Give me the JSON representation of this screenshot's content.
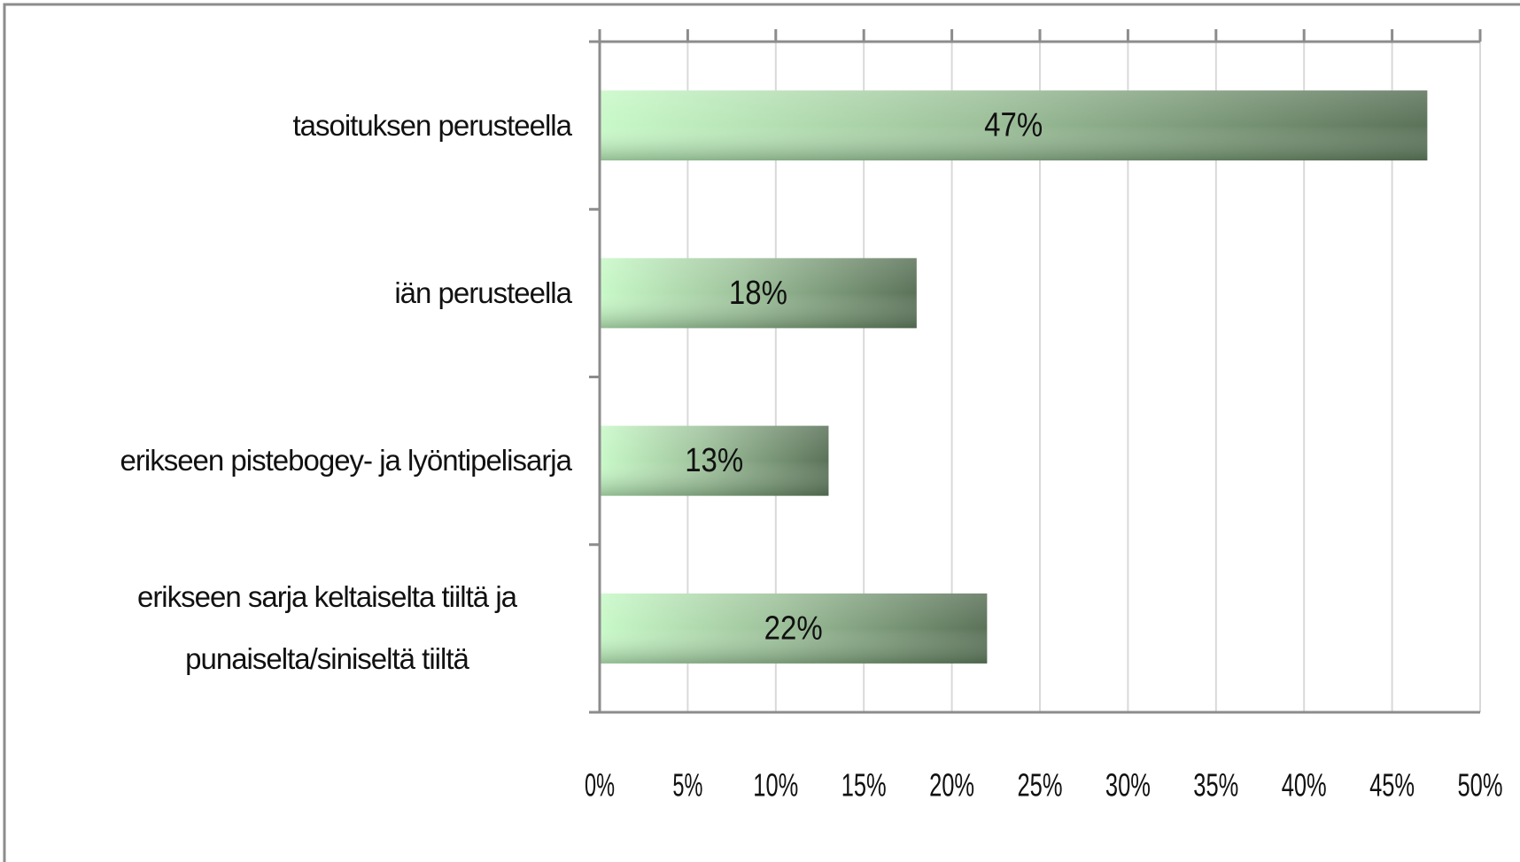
{
  "chart_data": {
    "type": "bar",
    "orientation": "horizontal",
    "categories": [
      "tasoituksen perusteella",
      "iän perusteella",
      "erikseen pistebogey- ja lyöntipelisarja",
      "erikseen sarja keltaiselta tiiltä ja punaiselta/siniseltä tiiltä"
    ],
    "values": [
      47,
      18,
      13,
      22
    ],
    "value_labels": [
      "47%",
      "18%",
      "13%",
      "22%"
    ],
    "color": "#6b8a68",
    "xlim": [
      0,
      50
    ],
    "xticks": [
      {
        "value": 0,
        "label": "0%"
      },
      {
        "value": 5,
        "label": "5%"
      },
      {
        "value": 10,
        "label": "10%"
      },
      {
        "value": 15,
        "label": "15%"
      },
      {
        "value": 20,
        "label": "20%"
      },
      {
        "value": 25,
        "label": "25%"
      },
      {
        "value": 30,
        "label": "30%"
      },
      {
        "value": 35,
        "label": "35%"
      },
      {
        "value": 40,
        "label": "40%"
      },
      {
        "value": 45,
        "label": "45%"
      },
      {
        "value": 50,
        "label": "50%"
      }
    ],
    "grid": true
  }
}
